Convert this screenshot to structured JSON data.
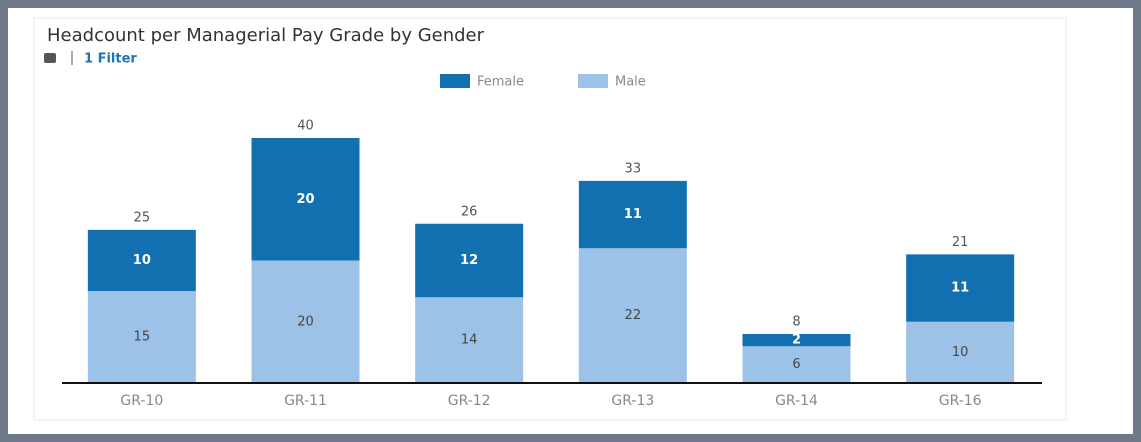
{
  "chart_data": {
    "type": "stacked-bar",
    "title": "Headcount per Managerial Pay Grade by Gender",
    "filter": "1 Filter",
    "categories": [
      "GR-10",
      "GR-11",
      "GR-12",
      "GR-13",
      "GR-14",
      "GR-16"
    ],
    "series": [
      {
        "name": "Male",
        "color": "#9cc3e7",
        "values": [
          15,
          20,
          14,
          22,
          6,
          10
        ]
      },
      {
        "name": "Female",
        "color": "#1270b0",
        "values": [
          10,
          20,
          12,
          11,
          2,
          11
        ]
      }
    ],
    "totals": [
      25,
      40,
      26,
      33,
      8,
      21
    ],
    "legend": "top"
  }
}
